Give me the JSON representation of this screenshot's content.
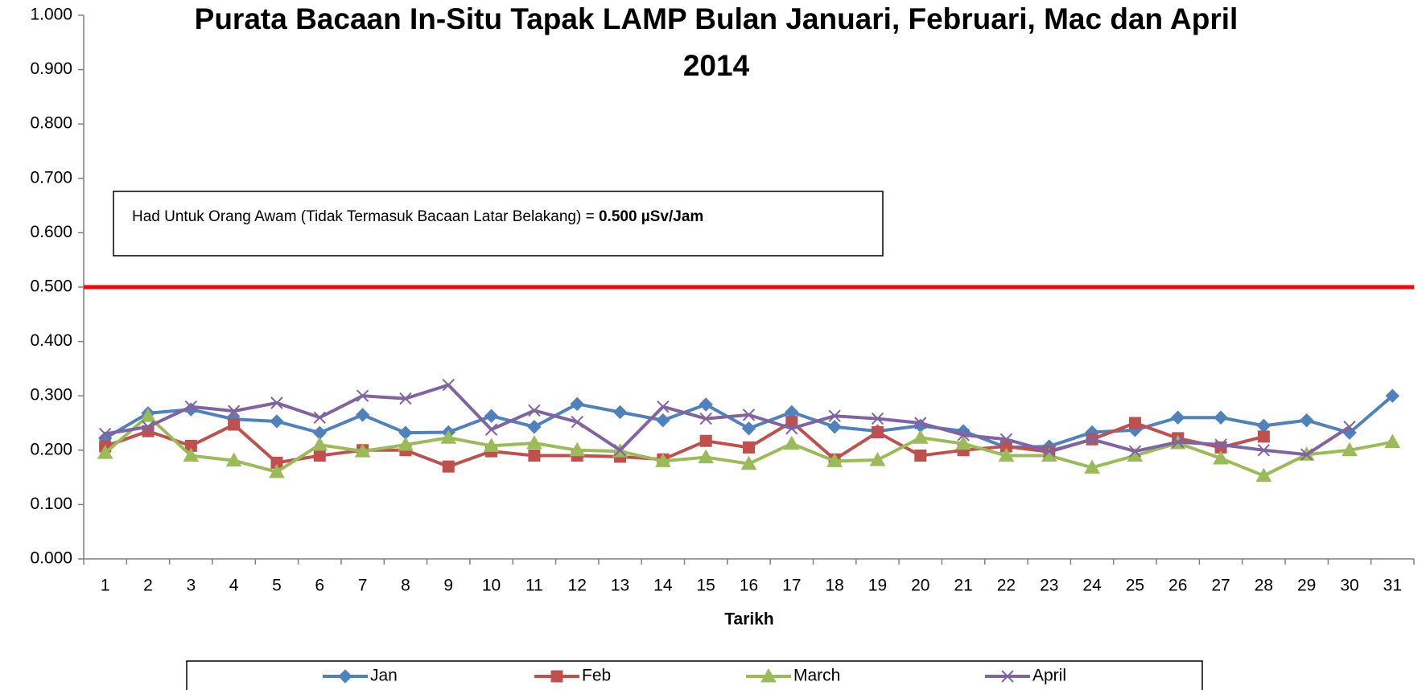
{
  "chart_data": {
    "type": "line",
    "title": "Purata Bacaan In-Situ Tapak LAMP Bulan Januari, Februari, Mac dan April",
    "title_line2": "2014",
    "x_label": "Tarikh",
    "categories": [
      "1",
      "2",
      "3",
      "4",
      "5",
      "6",
      "7",
      "8",
      "9",
      "10",
      "11",
      "12",
      "13",
      "14",
      "15",
      "16",
      "17",
      "18",
      "19",
      "20",
      "21",
      "22",
      "23",
      "24",
      "25",
      "26",
      "27",
      "28",
      "29",
      "30",
      "31"
    ],
    "series": [
      {
        "name": "Jan",
        "color": "#4f81bd",
        "marker": "diamond",
        "values": [
          0.222,
          0.268,
          0.275,
          0.257,
          0.253,
          0.232,
          0.265,
          0.232,
          0.233,
          0.263,
          0.243,
          0.285,
          0.27,
          0.255,
          0.284,
          0.24,
          0.27,
          0.243,
          0.235,
          0.245,
          0.235,
          0.205,
          0.207,
          0.233,
          0.237,
          0.26,
          0.26,
          0.245,
          0.255,
          0.232,
          0.3
        ]
      },
      {
        "name": "Feb",
        "color": "#c0504d",
        "marker": "square",
        "values": [
          0.207,
          0.235,
          0.208,
          0.247,
          0.177,
          0.19,
          0.2,
          0.2,
          0.17,
          0.198,
          0.19,
          0.19,
          0.188,
          0.183,
          0.217,
          0.205,
          0.252,
          0.183,
          0.233,
          0.19,
          0.2,
          0.207,
          0.197,
          0.22,
          0.25,
          0.222,
          0.205,
          0.225,
          null,
          null,
          null
        ]
      },
      {
        "name": "March",
        "color": "#9bbb59",
        "marker": "triangle",
        "values": [
          0.195,
          0.263,
          0.19,
          0.181,
          0.16,
          0.21,
          0.198,
          0.21,
          0.223,
          0.208,
          0.213,
          0.2,
          0.198,
          0.18,
          0.187,
          0.175,
          0.212,
          0.18,
          0.182,
          0.223,
          0.212,
          0.19,
          0.19,
          0.168,
          0.19,
          0.213,
          0.185,
          0.153,
          0.192,
          0.2,
          0.215
        ]
      },
      {
        "name": "April",
        "color": "#8064a2",
        "marker": "x",
        "values": [
          0.23,
          0.243,
          0.28,
          0.272,
          0.287,
          0.26,
          0.3,
          0.295,
          0.32,
          0.238,
          0.273,
          0.252,
          0.2,
          0.28,
          0.258,
          0.265,
          0.24,
          0.263,
          0.258,
          0.25,
          0.228,
          0.22,
          0.198,
          0.22,
          0.198,
          0.215,
          0.21,
          0.2,
          0.192,
          0.243,
          null
        ]
      }
    ],
    "reference_line": {
      "value": 0.5,
      "color": "#ff0000"
    },
    "annotation": {
      "text": "Had Untuk Orang Awam (Tidak Termasuk Bacaan Latar Belakang) = ",
      "bold": "0.500 µSv/Jam"
    },
    "ylim": [
      0,
      1
    ],
    "yticks": [
      {
        "value": 0,
        "label": "0.000"
      },
      {
        "value": 0.1,
        "label": "0.100"
      },
      {
        "value": 0.2,
        "label": "0.200"
      },
      {
        "value": 0.3,
        "label": "0.300"
      },
      {
        "value": 0.4,
        "label": "0.400"
      },
      {
        "value": 0.5,
        "label": "0.500"
      },
      {
        "value": 0.6,
        "label": "0.600"
      },
      {
        "value": 0.7,
        "label": "0.700"
      },
      {
        "value": 0.8,
        "label": "0.800"
      },
      {
        "value": 0.9,
        "label": "0.900"
      },
      {
        "value": 1,
        "label": "1.000"
      }
    ],
    "legend": "bottom"
  }
}
